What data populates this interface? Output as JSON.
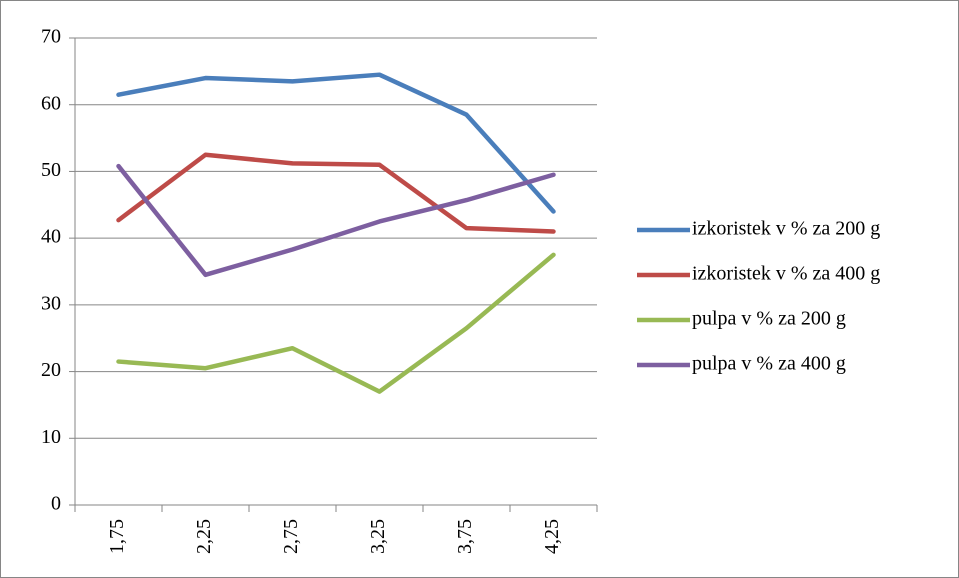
{
  "chart_data": {
    "type": "line",
    "categories": [
      "1,75",
      "2,25",
      "2,75",
      "3,25",
      "3,75",
      "4,25"
    ],
    "series": [
      {
        "name": "izkoristek v % za 200 g",
        "color": "#4a7ebb",
        "values": [
          61.5,
          64,
          63.5,
          64.5,
          58.5,
          44
        ]
      },
      {
        "name": "izkoristek v % za 400 g",
        "color": "#be4b48",
        "values": [
          42.7,
          52.5,
          51.2,
          51,
          41.5,
          41
        ]
      },
      {
        "name": "pulpa v % za 200 g",
        "color": "#98b954",
        "values": [
          21.5,
          20.5,
          23.5,
          17,
          26.5,
          37.5
        ]
      },
      {
        "name": "pulpa v % za 400 g",
        "color": "#7d5fa0",
        "values": [
          50.8,
          34.5,
          38.3,
          42.5,
          45.7,
          49.5
        ]
      }
    ],
    "ylim": [
      0,
      70
    ],
    "yticks": [
      0,
      10,
      20,
      30,
      40,
      50,
      60,
      70
    ],
    "grid": true,
    "legend": "right"
  }
}
